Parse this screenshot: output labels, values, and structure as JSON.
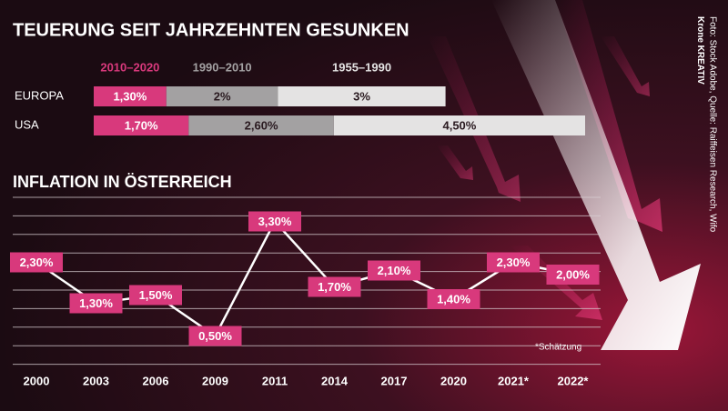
{
  "chart_data": [
    {
      "type": "stacked-bar",
      "title": "TEUERUNG SEIT JAHRZEHNTEN GESUNKEN",
      "categories": [
        "EUROPA",
        "USA"
      ],
      "series": [
        {
          "name": "2010–2020",
          "color": "#d8397c",
          "values": [
            1.3,
            1.7
          ],
          "value_labels": [
            "1,30%",
            "1,70%"
          ]
        },
        {
          "name": "1990–2010",
          "color": "#a3a1a2",
          "values": [
            2,
            2.6
          ],
          "value_labels": [
            "2%",
            "2,60%"
          ]
        },
        {
          "name": "1955–1990",
          "color": "#e4e3e3",
          "values": [
            3,
            4.5
          ],
          "value_labels": [
            "3%",
            "4,50%"
          ]
        }
      ]
    },
    {
      "type": "line",
      "title": "INFLATION IN ÖSTERREICH",
      "categories": [
        "2000",
        "2003",
        "2006",
        "2009",
        "2011",
        "2014",
        "2017",
        "2020",
        "2021*",
        "2022*"
      ],
      "values": [
        2.3,
        1.3,
        1.5,
        0.5,
        3.3,
        1.7,
        2.1,
        1.4,
        2.3,
        2.0
      ],
      "value_labels": [
        "2,30%",
        "1,30%",
        "1,50%",
        "0,50%",
        "3,30%",
        "1,70%",
        "2,10%",
        "1,40%",
        "2,30%",
        "2,00%"
      ],
      "color": "#d8397c",
      "annotation": "*Schätzung"
    }
  ],
  "credit": "Krone KREATIV",
  "source": "Foto: Stock Adobe, Quelle: Raiffeisen Research, Wifo"
}
